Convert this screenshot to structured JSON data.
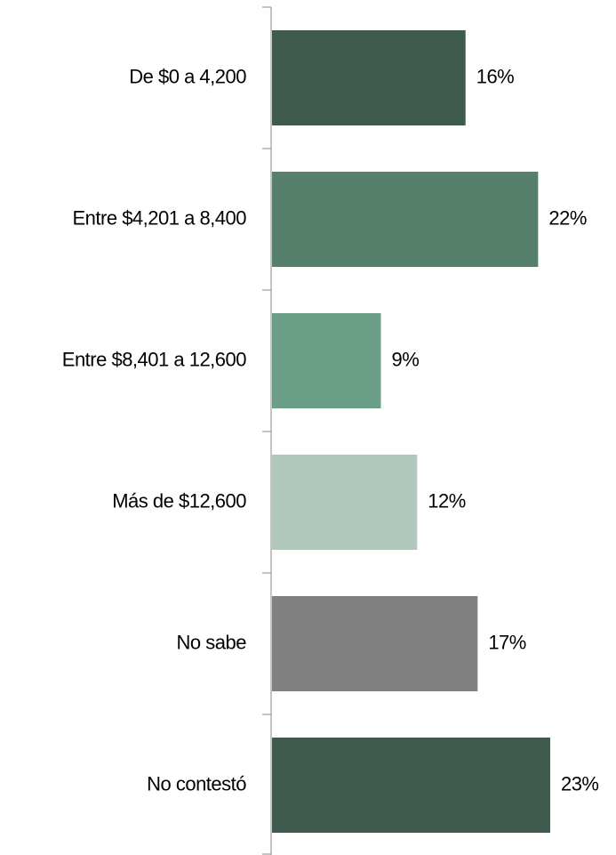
{
  "chart_data": {
    "type": "hbar",
    "categories": [
      "De $0 a 4,200",
      "Entre $4,201 a 8,400",
      "Entre $8,401 a 12,600",
      "Más de $12,600",
      "No sabe",
      "No contestó"
    ],
    "values": [
      16,
      22,
      9,
      12,
      17,
      23
    ],
    "value_labels": [
      "16%",
      "22%",
      "9%",
      "12%",
      "17%",
      "23%"
    ],
    "colors": [
      "#3f5b4d",
      "#56806b",
      "#6b9e86",
      "#afc8bb",
      "#808080",
      "#3f5b4d"
    ],
    "xlim": [
      0,
      28
    ]
  }
}
